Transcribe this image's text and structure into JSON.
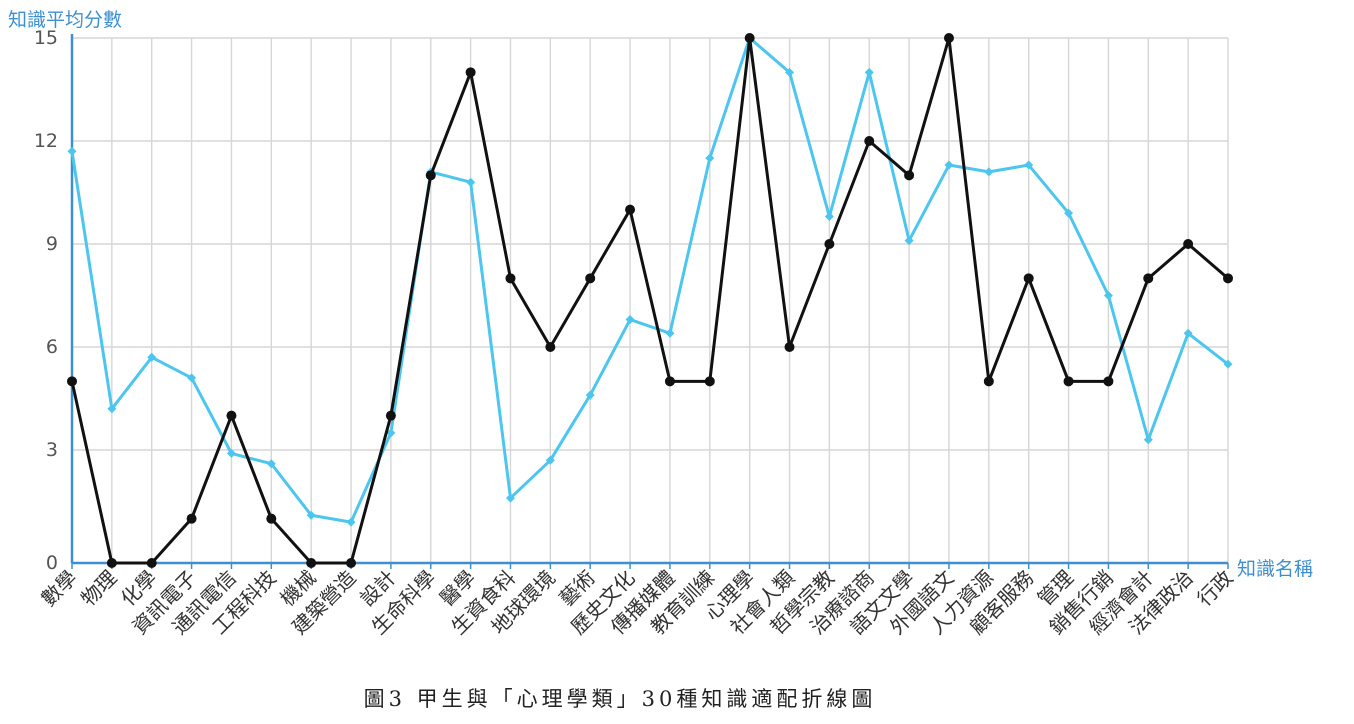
{
  "chart_data": {
    "type": "line",
    "ylabel": "知識平均分數",
    "xlabel": "知識名稱",
    "ylim": [
      0,
      15
    ],
    "yticks": [
      0,
      3,
      6,
      9,
      12,
      15
    ],
    "grid": true,
    "categories": [
      "數學",
      "物理",
      "化學",
      "資訊電子",
      "通訊電信",
      "工程科技",
      "機械",
      "建築營造",
      "設計",
      "生命科學",
      "醫學",
      "生資食科",
      "地球環境",
      "藝術",
      "歷史文化",
      "傳播媒體",
      "教育訓練",
      "心理學",
      "社會人類",
      "哲學宗教",
      "治療諮商",
      "語文文學",
      "外國語文",
      "人力資源",
      "顧客服務",
      "管理",
      "銷售行銷",
      "經濟會計",
      "法律政治",
      "行政"
    ],
    "series": [
      {
        "color": "#4cc6ef",
        "marker": "diamond",
        "values": [
          11.7,
          4.2,
          5.7,
          5.1,
          2.9,
          2.6,
          1.1,
          0.9,
          3.5,
          11.1,
          10.8,
          1.6,
          2.7,
          4.6,
          6.8,
          6.4,
          11.5,
          15.0,
          14.0,
          9.8,
          14.0,
          9.1,
          11.3,
          11.1,
          11.3,
          9.9,
          7.5,
          3.3,
          6.4,
          5.5
        ]
      },
      {
        "color": "#111111",
        "marker": "circle",
        "values": [
          5,
          0,
          0,
          1,
          4,
          1,
          0,
          0,
          4,
          11,
          14,
          8,
          6,
          8,
          10,
          5,
          5,
          15,
          6,
          9,
          12,
          11,
          15,
          5,
          8,
          5,
          5,
          8,
          9,
          8
        ]
      }
    ]
  },
  "caption": "圖3  甲生與「心理學類」30種知識適配折線圖"
}
